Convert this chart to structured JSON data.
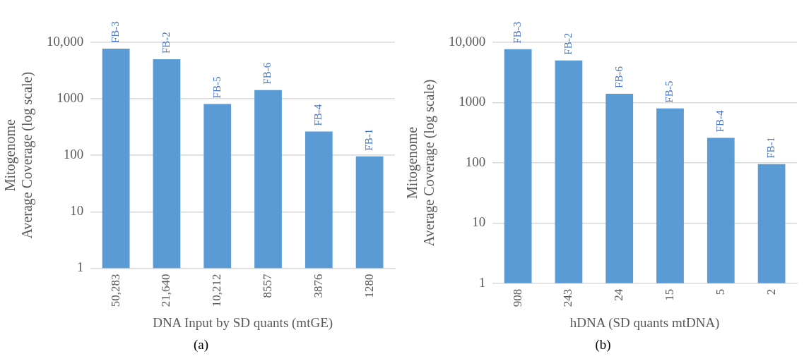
{
  "chart_data": [
    {
      "type": "bar",
      "categories": [
        "50,283",
        "21,640",
        "10,212",
        "8557",
        "3876",
        "1280"
      ],
      "values": [
        7700,
        5000,
        810,
        1430,
        263,
        96
      ],
      "value_labels": [
        "FB-3",
        "FB-2",
        "FB-5",
        "FB-6",
        "FB-4",
        "FB-1"
      ],
      "color": "#5b9bd5",
      "log": "y",
      "ylim": [
        1,
        10000
      ],
      "yticks": [
        1,
        10,
        100,
        1000,
        {
          "value": 10000,
          "label": "10,000"
        }
      ],
      "grid": "y",
      "xlabel": "DNA Input by SD quants (mtGE)",
      "ylabel": "Mitogenome\nAverage Coverage (log scale)",
      "annotations": [
        "(a)"
      ]
    },
    {
      "type": "bar",
      "categories": [
        "908",
        "243",
        "24",
        "15",
        "5",
        "2"
      ],
      "values": [
        7700,
        5000,
        1400,
        800,
        260,
        95
      ],
      "value_labels": [
        "FB-3",
        "FB-2",
        "FB-6",
        "FB-5",
        "FB-4",
        "FB-1"
      ],
      "color": "#5b9bd5",
      "log": "y",
      "ylim": [
        1,
        10000
      ],
      "yticks": [
        1,
        10,
        100,
        1000,
        {
          "value": 10000,
          "label": "10,000"
        }
      ],
      "grid": "y",
      "xlabel": "hDNA (SD quants mtDNA)",
      "ylabel": "Mitogenome\nAverage Coverage (log scale)",
      "annotations": [
        "(b)"
      ]
    }
  ]
}
